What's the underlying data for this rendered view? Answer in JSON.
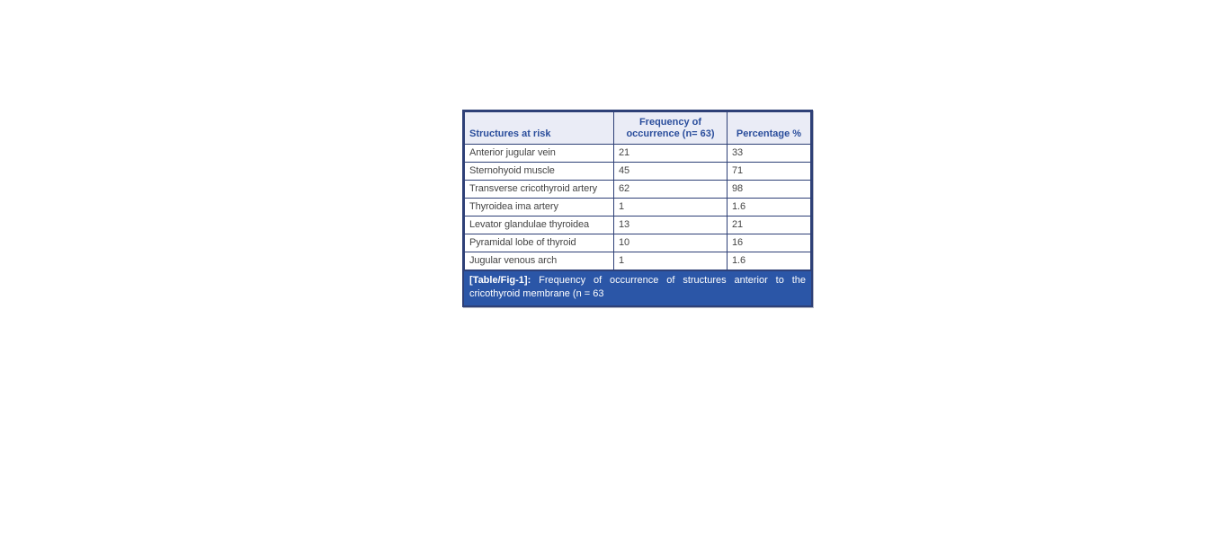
{
  "colors": {
    "border": "#2e4077",
    "header_bg": "#eaecf6",
    "header_text": "#2b4e9c",
    "body_text": "#454545",
    "caption_bg": "#2b56a7",
    "caption_text": "#ffffff"
  },
  "table": {
    "columns": [
      {
        "key": "structure",
        "label": "Structures at risk"
      },
      {
        "key": "frequency",
        "label": "Frequency of\noccurrence (n= 63)"
      },
      {
        "key": "percentage",
        "label": "Percentage %"
      }
    ],
    "rows": [
      {
        "structure": "Anterior jugular vein",
        "frequency": "21",
        "percentage": "33"
      },
      {
        "structure": "Sternohyoid muscle",
        "frequency": "45",
        "percentage": "71"
      },
      {
        "structure": "Transverse cricothyroid artery",
        "frequency": "62",
        "percentage": "98"
      },
      {
        "structure": "Thyroidea ima artery",
        "frequency": "1",
        "percentage": "1.6"
      },
      {
        "structure": "Levator glandulae thyroidea",
        "frequency": "13",
        "percentage": "21"
      },
      {
        "structure": "Pyramidal lobe of thyroid",
        "frequency": "10",
        "percentage": "16"
      },
      {
        "structure": "Jugular venous arch",
        "frequency": "1",
        "percentage": "1.6"
      }
    ],
    "caption": {
      "label": "[Table/Fig-1]:",
      "text": "Frequency of occurrence of structures anterior to the cricothyroid membrane (n = 63"
    }
  }
}
